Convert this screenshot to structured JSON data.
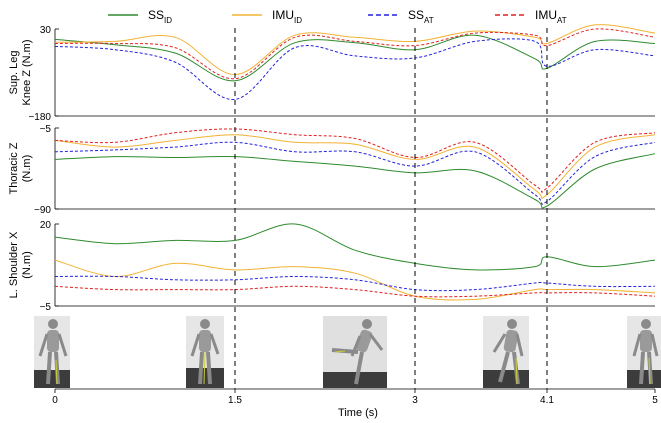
{
  "legend": [
    {
      "base": "SS",
      "sub": "ID",
      "color": "#2e8b2e",
      "dash": false
    },
    {
      "base": "IMU",
      "sub": "ID",
      "color": "#f2b233",
      "dash": false
    },
    {
      "base": "SS",
      "sub": "AT",
      "color": "#2222dd",
      "dash": true
    },
    {
      "base": "IMU",
      "sub": "AT",
      "color": "#e02020",
      "dash": true
    }
  ],
  "xlabel": "Time (s)",
  "xticks": [
    "0",
    "1.5",
    "3",
    "4.1",
    "5"
  ],
  "vlines": [
    1.5,
    3,
    4.1
  ],
  "chart_data": [
    {
      "type": "line",
      "ylabel": [
        "Sup. Leg",
        "Knee Z (N.m)"
      ],
      "ytick_labels": {
        "top": "30",
        "bottom": "−180"
      },
      "ylim": [
        -180,
        30
      ],
      "x": [
        0,
        0.5,
        1,
        1.5,
        2,
        2.5,
        3,
        3.5,
        4,
        4.1,
        4.5,
        5
      ],
      "series": [
        {
          "name": "SS_ID",
          "values": [
            5,
            -8,
            -28,
            -95,
            -3,
            -3,
            -20,
            15,
            -42,
            -65,
            0,
            -5
          ]
        },
        {
          "name": "IMU_ID",
          "values": [
            -2,
            0,
            10,
            -80,
            15,
            10,
            0,
            25,
            10,
            -5,
            40,
            20
          ]
        },
        {
          "name": "SS_AT",
          "values": [
            -12,
            -20,
            -50,
            -140,
            -15,
            -35,
            -40,
            0,
            0,
            -60,
            -20,
            -35
          ]
        },
        {
          "name": "IMU_AT",
          "values": [
            -5,
            -5,
            -15,
            -90,
            10,
            0,
            -10,
            20,
            15,
            -10,
            30,
            10
          ]
        }
      ]
    },
    {
      "type": "line",
      "ylabel": [
        "Thoracic Z",
        "(N.m)"
      ],
      "ytick_labels": {
        "top": "−5",
        "bottom": "−90"
      },
      "ylim": [
        -90,
        -5
      ],
      "x": [
        0,
        0.5,
        1,
        1.5,
        2,
        2.5,
        3,
        3.5,
        4,
        4.1,
        4.5,
        5
      ],
      "series": [
        {
          "name": "SS_ID",
          "values": [
            -38,
            -35,
            -36,
            -35,
            -40,
            -45,
            -52,
            -50,
            -80,
            -87,
            -48,
            -32
          ]
        },
        {
          "name": "IMU_ID",
          "values": [
            -18,
            -25,
            -18,
            -12,
            -20,
            -22,
            -38,
            -25,
            -70,
            -75,
            -25,
            -12
          ]
        },
        {
          "name": "SS_AT",
          "values": [
            -30,
            -28,
            -25,
            -20,
            -30,
            -30,
            -45,
            -30,
            -75,
            -82,
            -35,
            -20
          ]
        },
        {
          "name": "IMU_AT",
          "values": [
            -18,
            -20,
            -10,
            -6,
            -12,
            -16,
            -36,
            -20,
            -65,
            -68,
            -20,
            -10
          ]
        }
      ]
    },
    {
      "type": "line",
      "ylabel": [
        "L. Shoulder X",
        "(N.m)"
      ],
      "ytick_labels": {
        "top": "20",
        "bottom": "−5"
      },
      "ylim": [
        -5,
        20
      ],
      "x": [
        0,
        0.5,
        1,
        1.5,
        2,
        2.5,
        3,
        3.5,
        4,
        4.1,
        4.5,
        5
      ],
      "series": [
        {
          "name": "SS_ID",
          "values": [
            16,
            14,
            15,
            15,
            20,
            12,
            8,
            6,
            7,
            10,
            7,
            9
          ]
        },
        {
          "name": "IMU_ID",
          "values": [
            9,
            4,
            8,
            6,
            7,
            5,
            -2,
            -3,
            0,
            0,
            0,
            -1
          ]
        },
        {
          "name": "SS_AT",
          "values": [
            4,
            4,
            3,
            3,
            4,
            3,
            0,
            0,
            2,
            2,
            1,
            1
          ]
        },
        {
          "name": "IMU_AT",
          "values": [
            1,
            0,
            0,
            0,
            1,
            0,
            -2,
            -2,
            -1,
            -1,
            -1,
            -2
          ]
        }
      ]
    }
  ]
}
